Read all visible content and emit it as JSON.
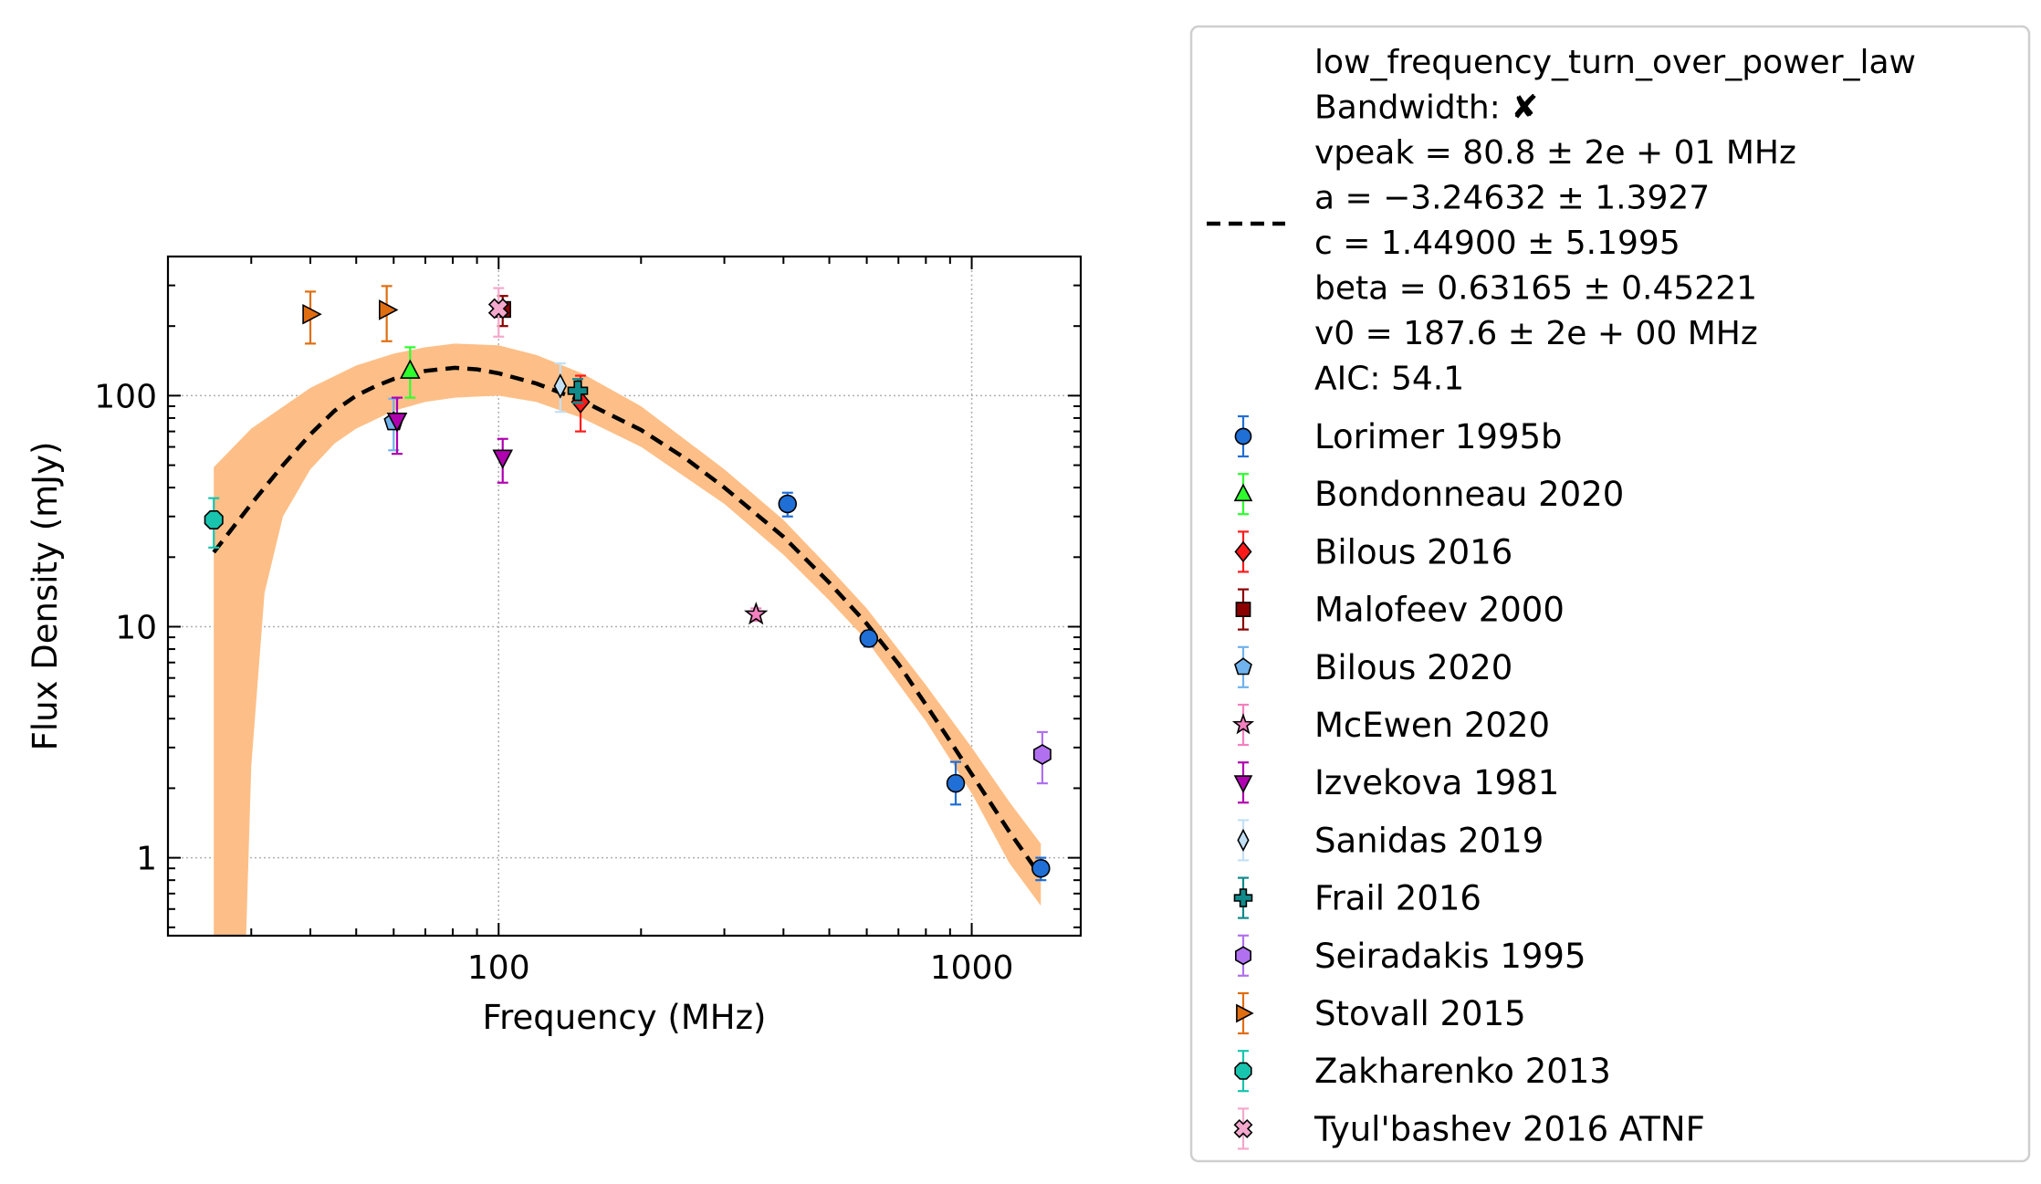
{
  "chart_data": {
    "type": "scatter",
    "xlabel": "Frequency (MHz)",
    "ylabel": "Flux Density (mJy)",
    "xscale": "log",
    "yscale": "log",
    "xlim": [
      20,
      1700
    ],
    "ylim": [
      0.46,
      400
    ],
    "xticks": [
      {
        "value": 100,
        "label": "100"
      },
      {
        "value": 1000,
        "label": "1000"
      }
    ],
    "yticks": [
      {
        "value": 1,
        "label": "1"
      },
      {
        "value": 10,
        "label": "10"
      },
      {
        "value": 100,
        "label": "100"
      }
    ],
    "grid": true,
    "legend_placement": "outside-right",
    "fit": {
      "model_label": "low_frequency_turn_over_power_law",
      "bandwidth_label": "Bandwidth: ✘",
      "param_lines": [
        "vpeak = 80.8 ± 2e + 01 MHz",
        "a = −3.24632 ± 1.3927",
        "c = 1.44900 ± 5.1995",
        "beta = 0.63165 ± 0.45221",
        "v0 = 187.6 ± 2e + 00 MHz",
        "AIC: 54.1"
      ],
      "curve": [
        [
          25,
          21
        ],
        [
          30,
          34
        ],
        [
          35,
          50
        ],
        [
          40,
          68
        ],
        [
          45,
          86
        ],
        [
          50,
          100
        ],
        [
          55,
          110
        ],
        [
          60,
          118
        ],
        [
          70,
          128
        ],
        [
          80.8,
          132
        ],
        [
          90,
          130
        ],
        [
          100,
          125
        ],
        [
          120,
          113
        ],
        [
          150,
          95
        ],
        [
          200,
          71
        ],
        [
          250,
          53
        ],
        [
          300,
          40
        ],
        [
          400,
          24.5
        ],
        [
          500,
          15.5
        ],
        [
          600,
          10.3
        ],
        [
          700,
          6.9
        ],
        [
          800,
          4.6
        ],
        [
          900,
          3.2
        ],
        [
          1000,
          2.3
        ],
        [
          1200,
          1.3
        ],
        [
          1400,
          0.83
        ]
      ],
      "band_upper": [
        [
          25,
          49
        ],
        [
          30,
          72
        ],
        [
          40,
          108
        ],
        [
          50,
          135
        ],
        [
          60,
          152
        ],
        [
          70,
          162
        ],
        [
          80.8,
          168
        ],
        [
          100,
          165
        ],
        [
          120,
          150
        ],
        [
          150,
          125
        ],
        [
          200,
          90
        ],
        [
          300,
          48
        ],
        [
          400,
          29
        ],
        [
          500,
          18
        ],
        [
          600,
          12
        ],
        [
          800,
          5.6
        ],
        [
          1000,
          3.0
        ],
        [
          1200,
          1.75
        ],
        [
          1400,
          1.15
        ]
      ],
      "band_lower": [
        [
          25,
          0.25
        ],
        [
          29,
          0.25
        ],
        [
          30,
          2.5
        ],
        [
          32,
          14
        ],
        [
          35,
          30
        ],
        [
          40,
          48
        ],
        [
          45,
          62
        ],
        [
          50,
          72
        ],
        [
          60,
          86
        ],
        [
          70,
          94
        ],
        [
          80.8,
          98
        ],
        [
          100,
          100
        ],
        [
          120,
          94
        ],
        [
          150,
          80
        ],
        [
          200,
          60
        ],
        [
          300,
          34
        ],
        [
          400,
          20.5
        ],
        [
          500,
          13
        ],
        [
          600,
          8.7
        ],
        [
          800,
          3.9
        ],
        [
          1000,
          1.9
        ],
        [
          1200,
          0.95
        ],
        [
          1400,
          0.62
        ]
      ],
      "line_color": "#000000",
      "band_color": "#fdbf87"
    },
    "series": [
      {
        "name": "Lorimer 1995b",
        "marker": "circle",
        "color": "#1f6fd6",
        "points": [
          {
            "x": 408,
            "y": 34,
            "lo": 30,
            "hi": 38
          },
          {
            "x": 606,
            "y": 8.9,
            "lo": 8.2,
            "hi": 9.6
          },
          {
            "x": 925,
            "y": 2.1,
            "lo": 1.7,
            "hi": 2.6
          },
          {
            "x": 1400,
            "y": 0.9,
            "lo": 0.8,
            "hi": 1.0
          }
        ]
      },
      {
        "name": "Bondonneau 2020",
        "marker": "triangle-up",
        "color": "#2dff2d",
        "points": [
          {
            "x": 65,
            "y": 128,
            "lo": 98,
            "hi": 162
          }
        ]
      },
      {
        "name": "Bilous 2016",
        "marker": "diamond",
        "color": "#ff1a1a",
        "points": [
          {
            "x": 149,
            "y": 94,
            "lo": 70,
            "hi": 122
          }
        ]
      },
      {
        "name": "Malofeev 2000",
        "marker": "square",
        "color": "#8b0000",
        "points": [
          {
            "x": 102,
            "y": 236,
            "lo": 200,
            "hi": 270
          }
        ]
      },
      {
        "name": "Bilous 2020",
        "marker": "pentagon",
        "color": "#6fb2ee",
        "points": [
          {
            "x": 60,
            "y": 77,
            "lo": 58,
            "hi": 97
          }
        ]
      },
      {
        "name": "McEwen 2020",
        "marker": "star",
        "color": "#f480c0",
        "points": [
          {
            "x": 350,
            "y": 11.3,
            "lo": 10.6,
            "hi": 12.0
          }
        ]
      },
      {
        "name": "Izvekova 1981",
        "marker": "triangle-down",
        "color": "#b000b0",
        "points": [
          {
            "x": 61,
            "y": 78,
            "lo": 56,
            "hi": 98
          },
          {
            "x": 102,
            "y": 54,
            "lo": 42,
            "hi": 65
          }
        ]
      },
      {
        "name": "Sanidas 2019",
        "marker": "thin-diamond",
        "color": "#c4e0f4",
        "points": [
          {
            "x": 135,
            "y": 110,
            "lo": 85,
            "hi": 138
          }
        ]
      },
      {
        "name": "Frail 2016",
        "marker": "plus",
        "color": "#108a8a",
        "points": [
          {
            "x": 147,
            "y": 105,
            "lo": 93,
            "hi": 118
          }
        ]
      },
      {
        "name": "Seiradakis 1995",
        "marker": "hexagon",
        "color": "#b070f0",
        "points": [
          {
            "x": 1410,
            "y": 2.8,
            "lo": 2.1,
            "hi": 3.5
          }
        ]
      },
      {
        "name": "Stovall 2015",
        "marker": "triangle-right",
        "color": "#e06e10",
        "points": [
          {
            "x": 40,
            "y": 225,
            "lo": 168,
            "hi": 282
          },
          {
            "x": 58,
            "y": 235,
            "lo": 172,
            "hi": 298
          }
        ]
      },
      {
        "name": "Zakharenko 2013",
        "marker": "octagon",
        "color": "#18c4ae",
        "points": [
          {
            "x": 25,
            "y": 29,
            "lo": 22,
            "hi": 36
          }
        ]
      },
      {
        "name": "Tyul'bashev 2016 ATNF",
        "marker": "x-filled",
        "color": "#f4a8cc",
        "points": [
          {
            "x": 100,
            "y": 238,
            "lo": 180,
            "hi": 292
          }
        ]
      }
    ]
  }
}
